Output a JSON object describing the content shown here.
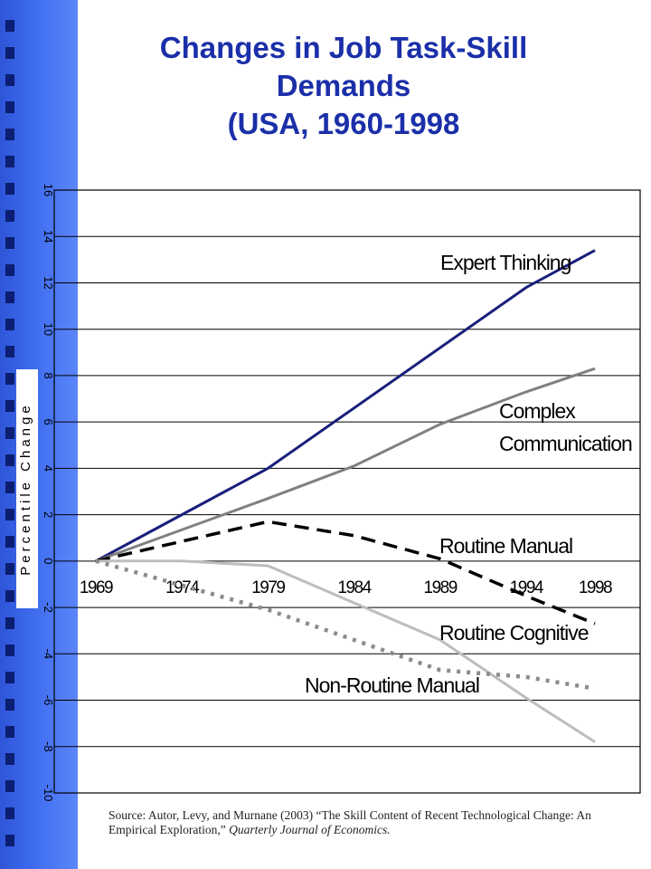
{
  "title": {
    "line1": "Changes in Job Task-Skill",
    "line2": "Demands",
    "line3": "(USA, 1960-1998"
  },
  "source": {
    "text": "Source: Autor, Levy, and Murnane (2003) “The Skill Content of Recent Technological Change: An Empirical  Exploration,” ",
    "journal": "Quarterly Journal of Economics."
  },
  "colors": {
    "sidebar": "#3f6df0",
    "sidebar_squares": "#0b1e72",
    "title": "#1a2fa8"
  },
  "chart_data": {
    "type": "line",
    "title": "",
    "xlabel": "",
    "ylabel": "Percentile Change",
    "categories": [
      "1969",
      "1974",
      "1979",
      "1984",
      "1989",
      "1994",
      "1998"
    ],
    "ylim": [
      -10,
      16
    ],
    "yticks": [
      "16",
      "14",
      "12",
      "10",
      "8",
      "6",
      "4",
      "2",
      "0",
      "-2",
      "-4",
      "-6",
      "-8",
      "-10"
    ],
    "grid": true,
    "legend": "inline labels",
    "series": [
      {
        "name": "Expert Thinking",
        "label_lines": [
          "Expert Thinking"
        ],
        "color": "#1a1f7a",
        "style": "solid",
        "points": [
          [
            1969,
            0
          ],
          [
            1979,
            4
          ],
          [
            1994,
            11.8
          ],
          [
            1998,
            13.4
          ]
        ]
      },
      {
        "name": "Complex Communication",
        "label_lines": [
          "Complex",
          "Communication"
        ],
        "color": "#808080",
        "style": "solid",
        "points": [
          [
            1969,
            0
          ],
          [
            1979,
            2.7
          ],
          [
            1984,
            4.1
          ],
          [
            1989,
            5.9
          ],
          [
            1994,
            7.3
          ],
          [
            1998,
            8.3
          ]
        ]
      },
      {
        "name": "Routine Manual",
        "label_lines": [
          "Routine Manual"
        ],
        "color": "#000000",
        "style": "dashed",
        "points": [
          [
            1969,
            0
          ],
          [
            1979,
            1.7
          ],
          [
            1984,
            1.1
          ],
          [
            1989,
            0.1
          ],
          [
            1994,
            -1.5
          ],
          [
            1998,
            -2.7
          ]
        ]
      },
      {
        "name": "Routine Cognitive",
        "label_lines": [
          "Routine Cognitive"
        ],
        "color": "#bdbdbd",
        "style": "solid",
        "points": [
          [
            1969,
            0
          ],
          [
            1974,
            0
          ],
          [
            1979,
            -0.2
          ],
          [
            1984,
            -1.8
          ],
          [
            1989,
            -3.4
          ],
          [
            1994,
            -5.9
          ],
          [
            1998,
            -7.8
          ]
        ]
      },
      {
        "name": "Non-Routine Manual",
        "label_lines": [
          "Non-Routine Manual"
        ],
        "color": "#8c8c8c",
        "style": "dotted",
        "points": [
          [
            1969,
            0
          ],
          [
            1979,
            -2.1
          ],
          [
            1989,
            -4.7
          ],
          [
            1994,
            -5
          ],
          [
            1998,
            -5.5
          ]
        ]
      }
    ]
  }
}
